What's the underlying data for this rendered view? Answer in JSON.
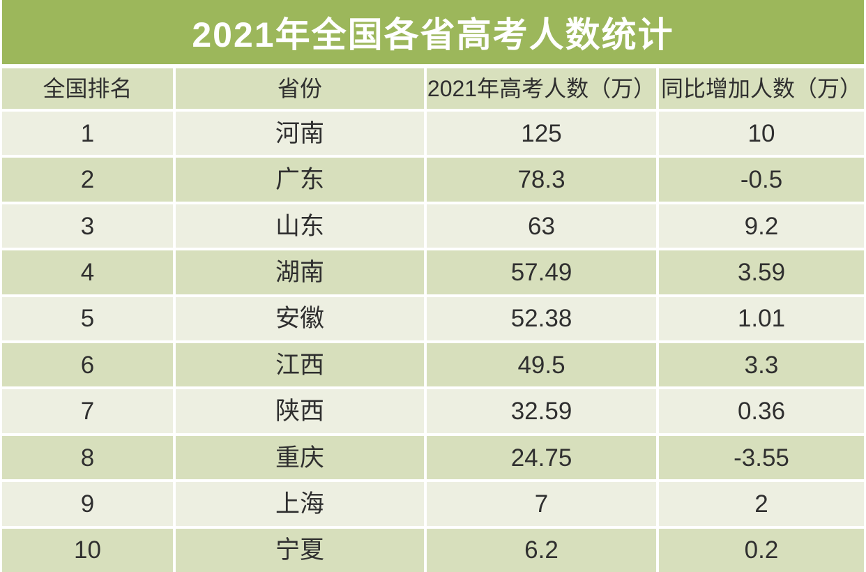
{
  "page": {
    "title": "2021年全国各省高考人数统计"
  },
  "colors": {
    "background": "#FFFFFF",
    "title_bg": "#9CB75B",
    "title_text": "#FFFFFF",
    "header_bg": "#D8E0BD",
    "row_odd_bg": "#EDEFE1",
    "row_even_bg": "#D7DFBC",
    "cell_text": "#2F2F2F"
  },
  "chart_data": {
    "type": "table",
    "title": "2021年全国各省高考人数统计",
    "columns": [
      "全国排名",
      "省份",
      "2021年高考人数（万）",
      "同比增加人数（万）"
    ],
    "rows": [
      [
        1,
        "河南",
        125,
        10
      ],
      [
        2,
        "广东",
        78.3,
        -0.5
      ],
      [
        3,
        "山东",
        63,
        9.2
      ],
      [
        4,
        "湖南",
        57.49,
        3.59
      ],
      [
        5,
        "安徽",
        52.38,
        1.01
      ],
      [
        6,
        "江西",
        49.5,
        3.3
      ],
      [
        7,
        "陕西",
        32.59,
        0.36
      ],
      [
        8,
        "重庆",
        24.75,
        -3.55
      ],
      [
        9,
        "上海",
        7,
        2
      ],
      [
        10,
        "宁夏",
        6.2,
        0.2
      ]
    ],
    "layout": {
      "header_fill": "green",
      "row_alternation": "light/green starting light at rank 1",
      "grid": "white 4px separators between all cells"
    }
  }
}
